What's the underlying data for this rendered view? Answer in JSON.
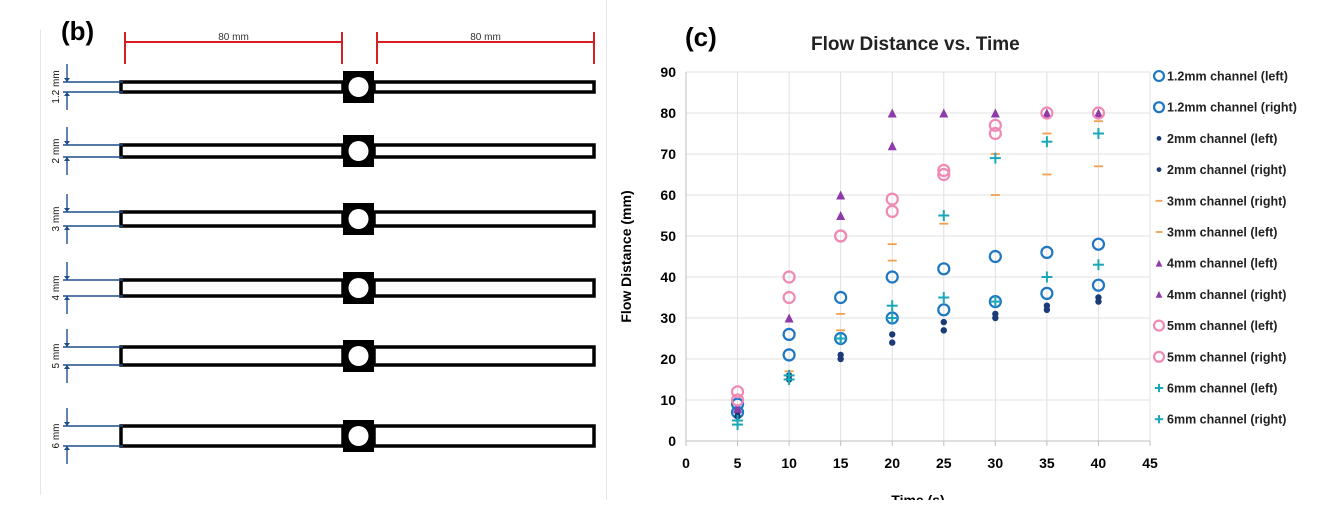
{
  "panel_b": {
    "label": "(b)",
    "dimension_left": "80 mm",
    "dimension_right": "80 mm",
    "channels": [
      "1.2 mm",
      "2 mm",
      "3 mm",
      "4 mm",
      "5 mm",
      "6 mm"
    ],
    "colors": {
      "dimension": "#d42020",
      "marker": "#1f4e8c",
      "outline": "#000000"
    }
  },
  "panel_c": {
    "label": "(c)"
  },
  "chart_data": {
    "type": "scatter",
    "title": "Flow Distance vs. Time",
    "xlabel": "Time (s)",
    "ylabel": "Flow Distance (mm)",
    "xlim": [
      0,
      45
    ],
    "ylim": [
      0,
      90
    ],
    "x_ticks": [
      "0",
      "5",
      "10",
      "15",
      "20",
      "25",
      "30",
      "35",
      "40",
      "45"
    ],
    "y_ticks": [
      "0",
      "10",
      "20",
      "30",
      "40",
      "50",
      "60",
      "70",
      "80",
      "90"
    ],
    "grid": true,
    "legend_position": "right",
    "series": [
      {
        "name": "1.2mm channel (left)",
        "marker": "circle-open",
        "color": "#1f77c4",
        "x": [
          5,
          10,
          15,
          20,
          25,
          30,
          35,
          40
        ],
        "y": [
          9,
          26,
          35,
          40,
          42,
          45,
          46,
          48
        ]
      },
      {
        "name": "1.2mm channel (right)",
        "marker": "circle-open",
        "color": "#1f77c4",
        "x": [
          5,
          10,
          15,
          20,
          25,
          30,
          35,
          40
        ],
        "y": [
          7,
          21,
          25,
          30,
          32,
          34,
          36,
          38
        ]
      },
      {
        "name": "2mm channel (left)",
        "marker": "dot",
        "color": "#1a3a78",
        "x": [
          5,
          10,
          15,
          20,
          25,
          30,
          35,
          40
        ],
        "y": [
          7,
          16,
          21,
          26,
          29,
          31,
          33,
          35
        ]
      },
      {
        "name": "2mm channel (right)",
        "marker": "dot",
        "color": "#1a3a78",
        "x": [
          5,
          10,
          15,
          20,
          25,
          30,
          35,
          40
        ],
        "y": [
          6,
          15,
          20,
          24,
          27,
          30,
          32,
          34
        ]
      },
      {
        "name": "3mm channel (right)",
        "marker": "dash",
        "color": "#f0a050",
        "x": [
          5,
          10,
          15,
          20,
          25,
          30,
          35,
          40
        ],
        "y": [
          5,
          17,
          31,
          48,
          55,
          70,
          75,
          78
        ]
      },
      {
        "name": "3mm channel (left)",
        "marker": "dash",
        "color": "#f0a050",
        "x": [
          5,
          10,
          15,
          20,
          25,
          30,
          35,
          40
        ],
        "y": [
          4,
          16,
          27,
          44,
          53,
          60,
          65,
          67
        ]
      },
      {
        "name": "4mm channel (left)",
        "marker": "triangle",
        "color": "#8e3aa8",
        "x": [
          5,
          10,
          15,
          20,
          25,
          30,
          35,
          40
        ],
        "y": [
          8,
          30,
          60,
          80,
          80,
          80,
          80,
          80
        ]
      },
      {
        "name": "4mm channel (right)",
        "marker": "triangle",
        "color": "#8e3aa8",
        "x": [
          15,
          20
        ],
        "y": [
          55,
          72
        ]
      },
      {
        "name": "5mm channel (left)",
        "marker": "circle-open",
        "color": "#f08ab4",
        "x": [
          5,
          10,
          15,
          20,
          25,
          30,
          35,
          40
        ],
        "y": [
          12,
          40,
          50,
          59,
          66,
          77,
          80,
          80
        ]
      },
      {
        "name": "5mm channel (right)",
        "marker": "circle-open",
        "color": "#f08ab4",
        "x": [
          5,
          10,
          15,
          20,
          25,
          30
        ],
        "y": [
          10,
          35,
          50,
          56,
          65,
          75
        ]
      },
      {
        "name": "6mm channel (left)",
        "marker": "plus",
        "color": "#1aa8b8",
        "x": [
          5,
          10,
          15,
          20,
          25,
          30,
          35,
          40
        ],
        "y": [
          5,
          16,
          25,
          33,
          55,
          69,
          73,
          75
        ]
      },
      {
        "name": "6mm channel (right)",
        "marker": "plus",
        "color": "#1aa8b8",
        "x": [
          5,
          10,
          15,
          20,
          25,
          30,
          35,
          40
        ],
        "y": [
          4,
          15,
          25,
          30,
          35,
          34,
          40,
          43
        ]
      }
    ]
  }
}
